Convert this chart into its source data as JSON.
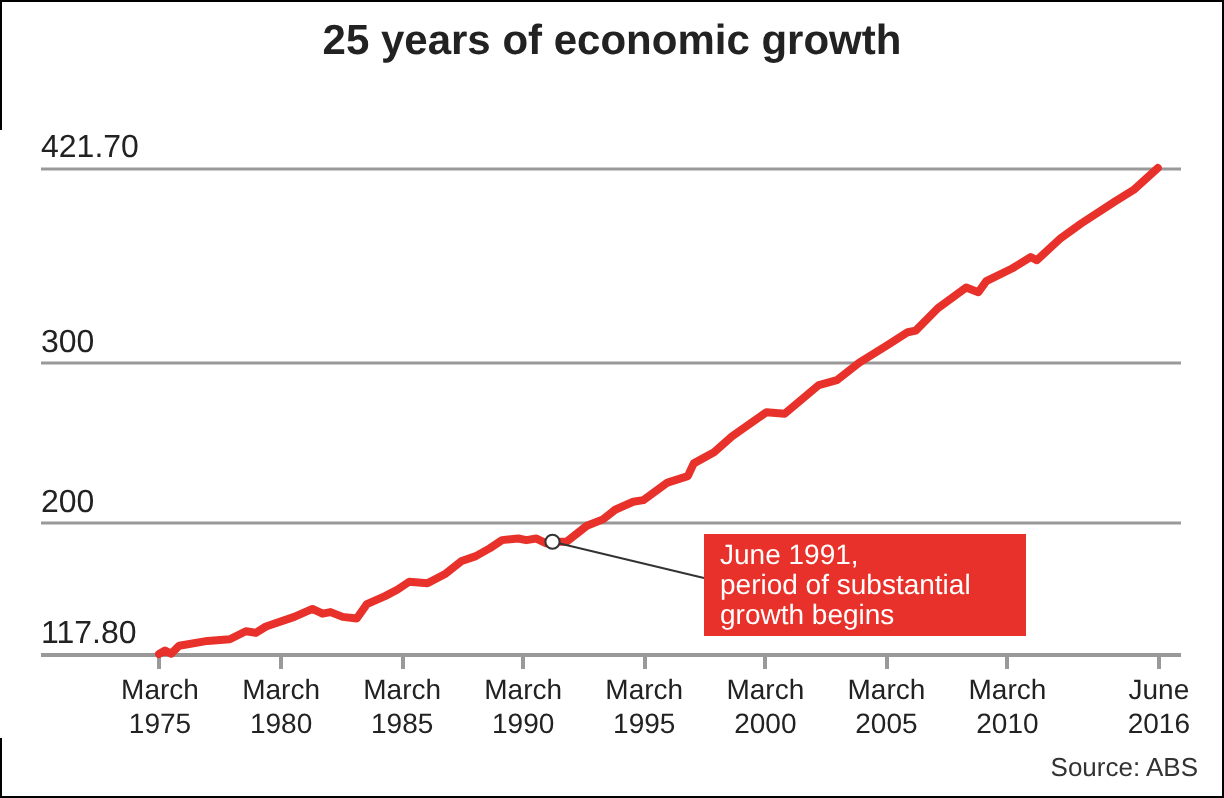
{
  "chart_data": {
    "type": "line",
    "title": "25 years of economic growth",
    "x": [
      "1975-03",
      "1975-06",
      "1975-09",
      "1976-01",
      "1977-03",
      "1978-02",
      "1978-10",
      "1979-03",
      "1979-08",
      "1980-10",
      "1981-07",
      "1981-12",
      "1982-04",
      "1982-10",
      "1983-05",
      "1983-10",
      "1984-07",
      "1985-01",
      "1985-07",
      "1986-04",
      "1987-01",
      "1987-09",
      "1988-04",
      "1988-11",
      "1989-05",
      "1990-01",
      "1990-05",
      "1990-10",
      "1991-03",
      "1991-06",
      "1992-01",
      "1992-11",
      "1993-07",
      "1994-01",
      "1994-10",
      "1995-03",
      "1996-03",
      "1997-01",
      "1997-04",
      "1998-02",
      "1998-11",
      "2000-04",
      "2001-01",
      "2002-06",
      "2003-03",
      "2004-02",
      "2005-04",
      "2006-02",
      "2006-06",
      "2007-05",
      "2008-07",
      "2009-01",
      "2009-05",
      "2010-06",
      "2011-03",
      "2011-06",
      "2012-06",
      "2013-04",
      "2014-09",
      "2015-06",
      "2016-06"
    ],
    "series": [
      {
        "color": "#e8312a",
        "values": [
          117.8,
          120,
          118,
          123,
          126,
          127,
          132,
          131,
          135,
          141,
          146,
          143,
          144,
          141,
          140,
          149,
          154,
          158,
          163,
          162,
          168,
          176,
          179,
          184,
          189,
          190,
          189,
          190,
          187,
          188,
          188,
          198,
          202,
          208,
          213,
          214,
          225,
          229,
          237,
          244,
          254,
          269,
          268,
          286,
          289,
          300,
          311,
          319,
          320,
          334,
          347,
          344,
          351,
          359,
          366,
          364,
          378,
          387,
          401,
          408,
          421.7
        ]
      }
    ],
    "xlim": [
      "1970-04",
      "2017-05"
    ],
    "xticks": [
      {
        "value": "1975-03",
        "label": "March 1975"
      },
      {
        "value": "1980-03",
        "label": "March 1980"
      },
      {
        "value": "1985-03",
        "label": "March 1985"
      },
      {
        "value": "1990-03",
        "label": "March 1990"
      },
      {
        "value": "1995-03",
        "label": "March 1995"
      },
      {
        "value": "2000-03",
        "label": "March 2000"
      },
      {
        "value": "2005-03",
        "label": "March 2005"
      },
      {
        "value": "2010-03",
        "label": "March 2010"
      },
      {
        "value": "2016-06",
        "label": "June 2016"
      }
    ],
    "ylim": [
      117.8,
      421.7
    ],
    "yticks": [
      {
        "value": 117.8,
        "label": "117.80"
      },
      {
        "value": 200,
        "label": "200"
      },
      {
        "value": 300,
        "label": "300"
      },
      {
        "value": 421.7,
        "label": "421.70"
      }
    ],
    "grid": "y",
    "marker": "none",
    "line_style": "solid",
    "annotations": [
      {
        "text": "June 1991,\nperiod of substantial\ngrowth begins",
        "x": "1991-06",
        "y": 188
      },
      "Source: ABS"
    ]
  }
}
